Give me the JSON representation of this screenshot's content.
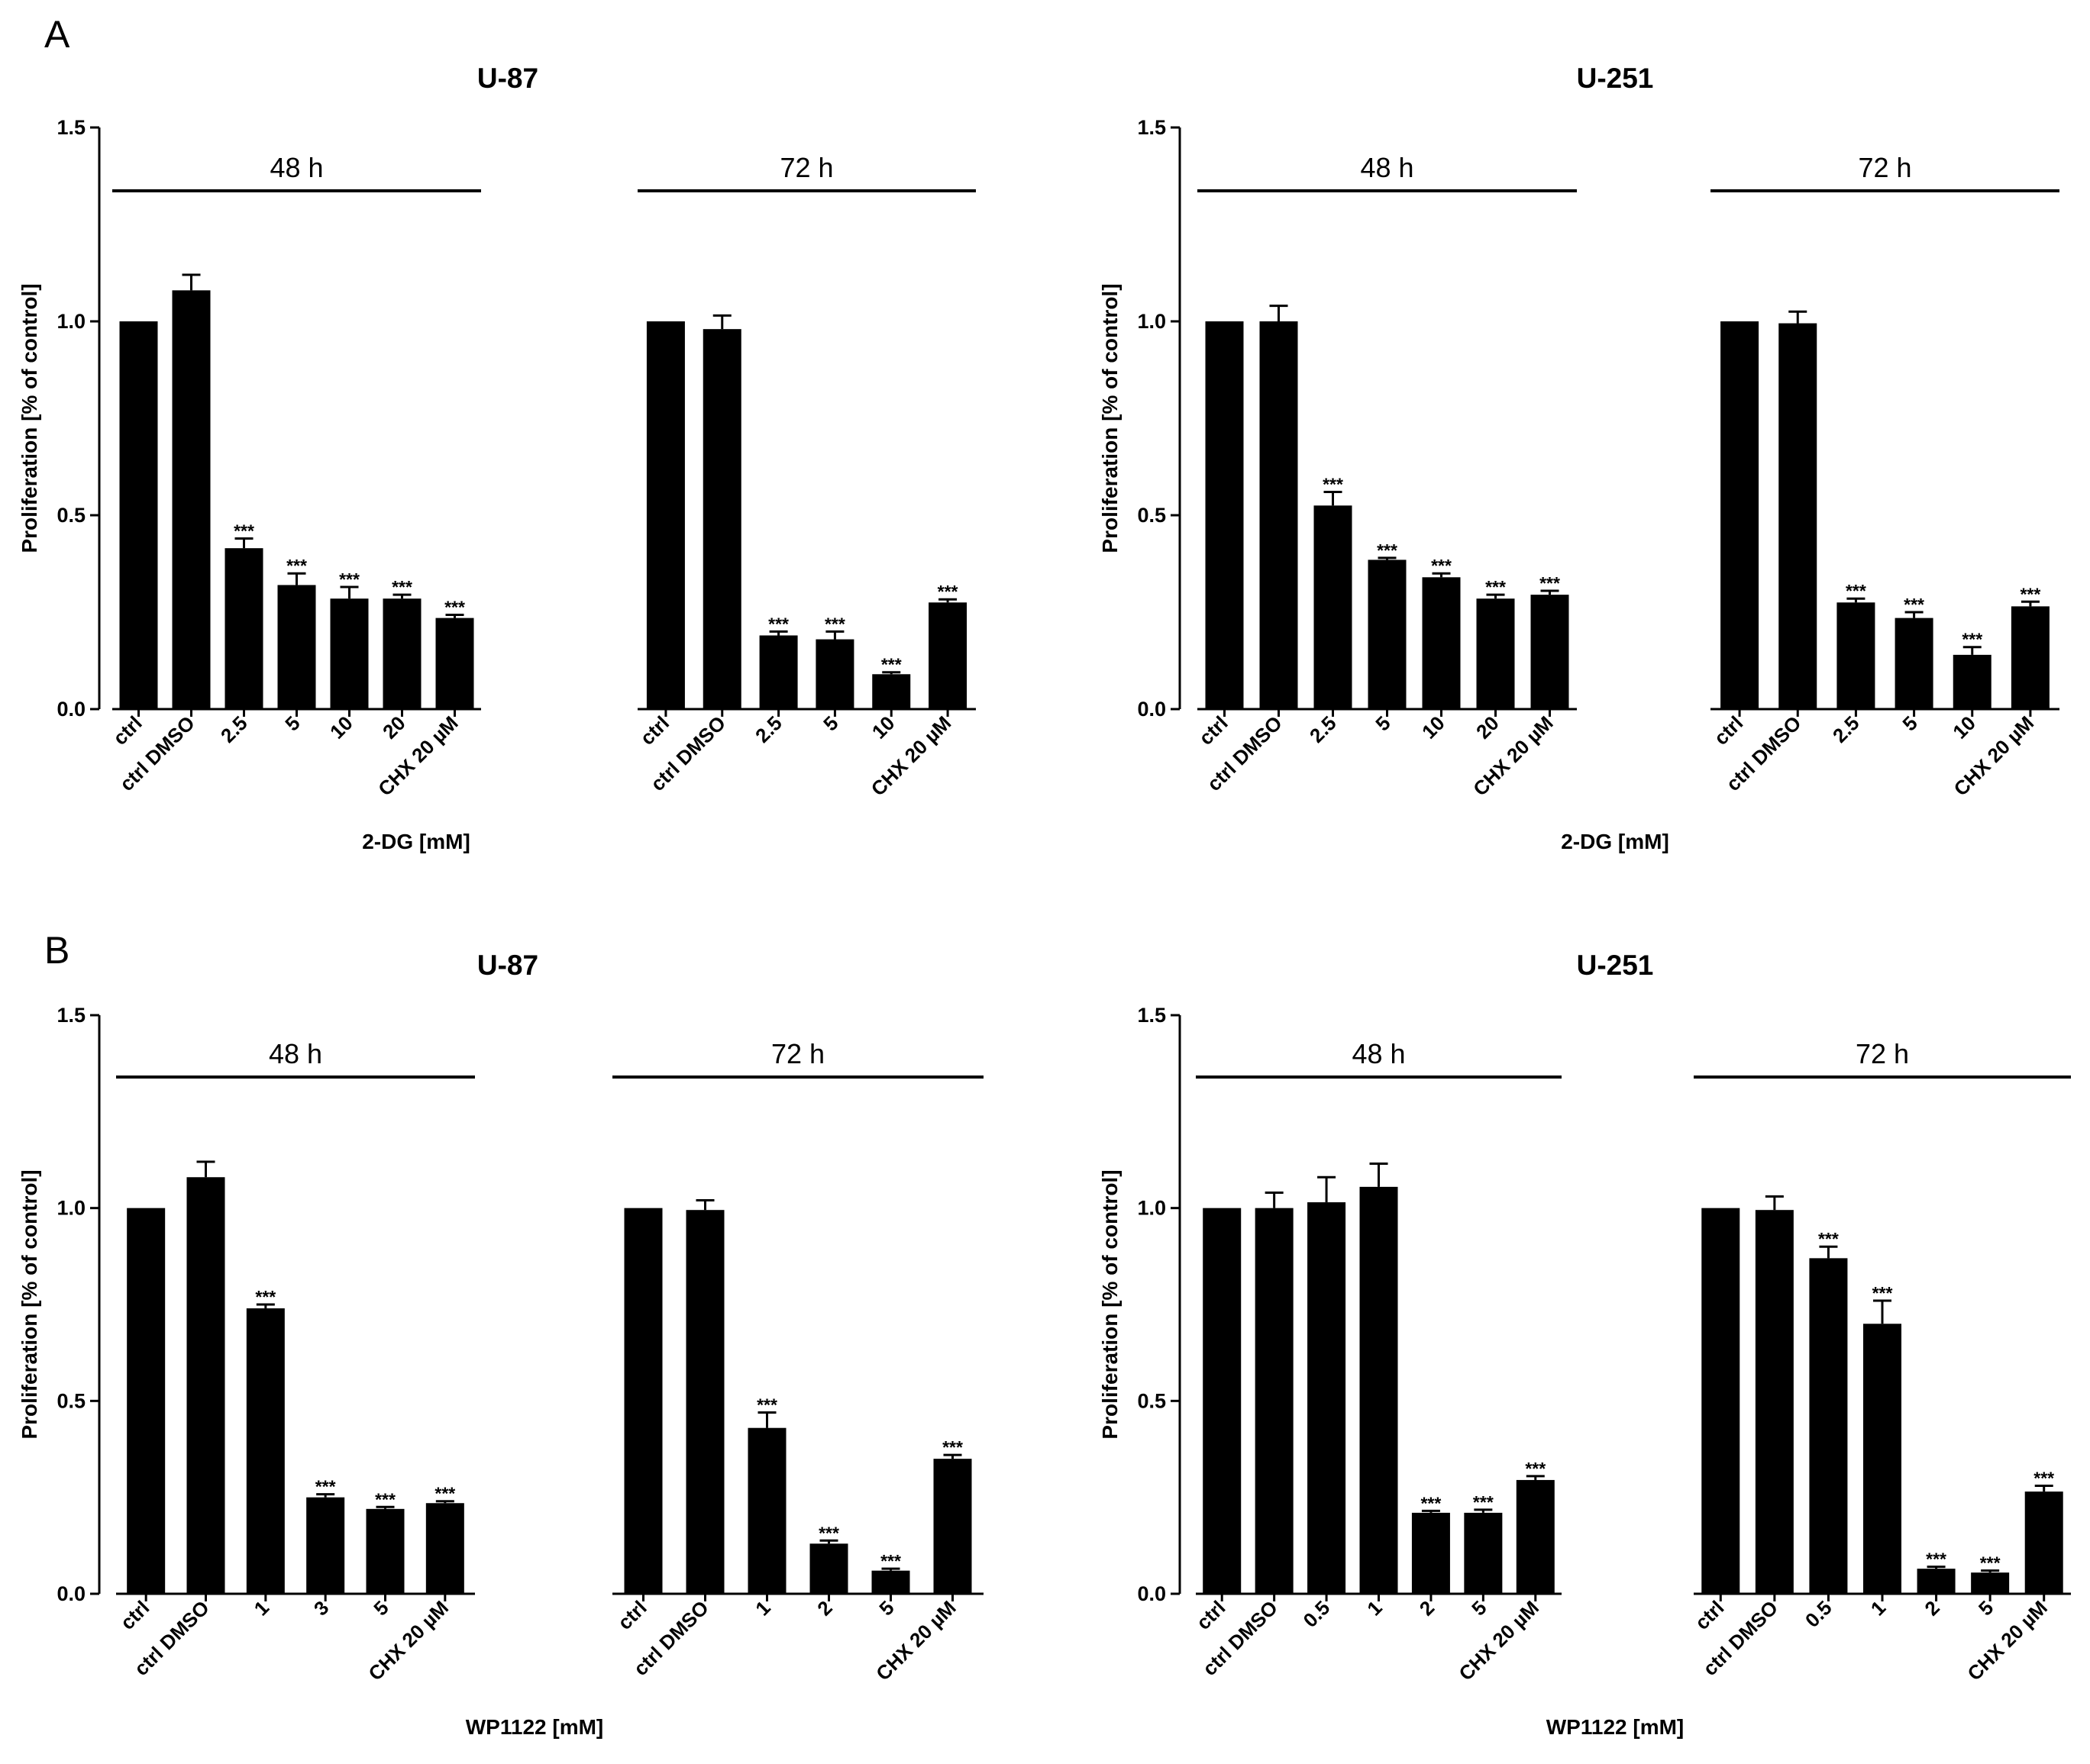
{
  "figure": {
    "panel_letters": [
      "A",
      "B"
    ],
    "colors": {
      "bar": "#000000",
      "axis": "#000000",
      "background": "#ffffff"
    }
  },
  "chart_data": [
    {
      "type": "bar",
      "panel": "A",
      "title": "U-87",
      "xlabel": "2-DG [mM]",
      "ylabel": "Proliferation [% of control]",
      "ylim": [
        0,
        1.5
      ],
      "yticks": [
        "0.0",
        "0.5",
        "1.0",
        "1.5"
      ],
      "groups": [
        {
          "label": "48 h",
          "categories": [
            "ctrl",
            "ctrl DMSO",
            "2.5",
            "5",
            "10",
            "20",
            "CHX 20 µM"
          ],
          "values": [
            1.0,
            1.08,
            0.415,
            0.32,
            0.285,
            0.285,
            0.235
          ],
          "errors": [
            0,
            0.04,
            0.025,
            0.03,
            0.03,
            0.01,
            0.008
          ],
          "significance": [
            "",
            "",
            "***",
            "***",
            "***",
            "***",
            "***"
          ]
        },
        {
          "label": "72 h",
          "categories": [
            "ctrl",
            "ctrl DMSO",
            "2.5",
            "5",
            "10",
            "CHX 20 µM"
          ],
          "values": [
            1.0,
            0.98,
            0.19,
            0.18,
            0.09,
            0.275
          ],
          "errors": [
            0,
            0.035,
            0.01,
            0.02,
            0.005,
            0.008
          ],
          "significance": [
            "",
            "",
            "***",
            "***",
            "***",
            "***"
          ]
        }
      ]
    },
    {
      "type": "bar",
      "panel": "A",
      "title": "U-251",
      "xlabel": "2-DG [mM]",
      "ylabel": "Proliferation [% of control]",
      "ylim": [
        0,
        1.5
      ],
      "yticks": [
        "0.0",
        "0.5",
        "1.0",
        "1.5"
      ],
      "groups": [
        {
          "label": "48 h",
          "categories": [
            "ctrl",
            "ctrl DMSO",
            "2.5",
            "5",
            "10",
            "20",
            "CHX 20 µM"
          ],
          "values": [
            1.0,
            1.0,
            0.525,
            0.385,
            0.34,
            0.285,
            0.295
          ],
          "errors": [
            0,
            0.04,
            0.035,
            0.005,
            0.01,
            0.01,
            0.01
          ],
          "significance": [
            "",
            "",
            "***",
            "***",
            "***",
            "***",
            "***"
          ]
        },
        {
          "label": "72 h",
          "categories": [
            "ctrl",
            "ctrl DMSO",
            "2.5",
            "5",
            "10",
            "CHX 20 µM"
          ],
          "values": [
            1.0,
            0.995,
            0.275,
            0.235,
            0.14,
            0.265
          ],
          "errors": [
            0,
            0.03,
            0.01,
            0.015,
            0.02,
            0.012
          ],
          "significance": [
            "",
            "",
            "***",
            "***",
            "***",
            "***"
          ]
        }
      ]
    },
    {
      "type": "bar",
      "panel": "B",
      "title": "U-87",
      "xlabel": "WP1122 [mM]",
      "ylabel": "Proliferation [% of control]",
      "ylim": [
        0,
        1.5
      ],
      "yticks": [
        "0.0",
        "0.5",
        "1.0",
        "1.5"
      ],
      "groups": [
        {
          "label": "48 h",
          "categories": [
            "ctrl",
            "ctrl DMSO",
            "1",
            "3",
            "5",
            "CHX 20 µM"
          ],
          "values": [
            1.0,
            1.08,
            0.74,
            0.25,
            0.22,
            0.235
          ],
          "errors": [
            0,
            0.04,
            0.01,
            0.008,
            0.005,
            0.005
          ],
          "significance": [
            "",
            "",
            "***",
            "***",
            "***",
            "***"
          ]
        },
        {
          "label": "72 h",
          "categories": [
            "ctrl",
            "ctrl DMSO",
            "1",
            "2",
            "5",
            "CHX 20 µM"
          ],
          "values": [
            1.0,
            0.995,
            0.43,
            0.13,
            0.06,
            0.35
          ],
          "errors": [
            0,
            0.025,
            0.04,
            0.008,
            0.005,
            0.01
          ],
          "significance": [
            "",
            "",
            "***",
            "***",
            "***",
            "***"
          ]
        }
      ]
    },
    {
      "type": "bar",
      "panel": "B",
      "title": "U-251",
      "xlabel": "WP1122 [mM]",
      "ylabel": "Proliferation [% of control]",
      "ylim": [
        0,
        1.5
      ],
      "yticks": [
        "0.0",
        "0.5",
        "1.0",
        "1.5"
      ],
      "groups": [
        {
          "label": "48 h",
          "categories": [
            "ctrl",
            "ctrl DMSO",
            "0.5",
            "1",
            "2",
            "5",
            "CHX 20 µM"
          ],
          "values": [
            1.0,
            1.0,
            1.015,
            1.055,
            0.21,
            0.21,
            0.295
          ],
          "errors": [
            0,
            0.04,
            0.065,
            0.06,
            0.005,
            0.008,
            0.01
          ],
          "significance": [
            "",
            "",
            "",
            "",
            "***",
            "***",
            "***"
          ]
        },
        {
          "label": "72 h",
          "categories": [
            "ctrl",
            "ctrl DMSO",
            "0.5",
            "1",
            "2",
            "5",
            "CHX 20 µM"
          ],
          "values": [
            1.0,
            0.995,
            0.87,
            0.7,
            0.065,
            0.055,
            0.265
          ],
          "errors": [
            0,
            0.035,
            0.03,
            0.06,
            0.005,
            0.005,
            0.015
          ],
          "significance": [
            "",
            "",
            "***",
            "***",
            "***",
            "***",
            "***"
          ]
        }
      ]
    }
  ]
}
